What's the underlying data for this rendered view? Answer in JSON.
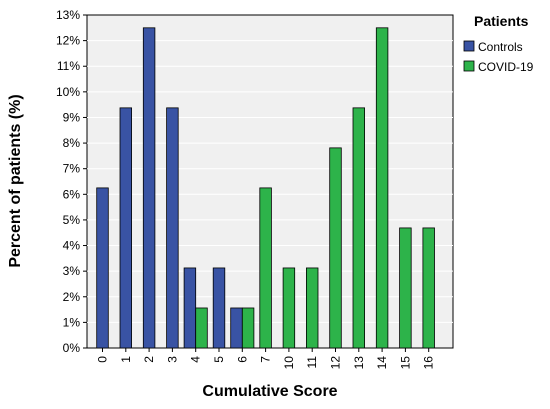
{
  "chart_data": {
    "type": "bar",
    "title": "",
    "xlabel": "Cumulative Score",
    "ylabel": "Percent of patients (%)",
    "ylim": [
      0,
      13
    ],
    "y_ticks": [
      "0%",
      "1%",
      "2%",
      "3%",
      "4%",
      "5%",
      "6%",
      "7%",
      "8%",
      "9%",
      "10%",
      "11%",
      "12%",
      "13%"
    ],
    "categories": [
      "0",
      "1",
      "2",
      "3",
      "4",
      "5",
      "6",
      "7",
      "10",
      "11",
      "12",
      "13",
      "14",
      "15",
      "16"
    ],
    "series": [
      {
        "name": "Controls",
        "color": "#3953a4",
        "values": [
          6.25,
          9.375,
          12.5,
          9.375,
          3.125,
          3.125,
          1.5625,
          null,
          null,
          null,
          null,
          null,
          null,
          null,
          null
        ]
      },
      {
        "name": "COVID-19",
        "color": "#2db34a",
        "values": [
          null,
          null,
          null,
          null,
          1.5625,
          null,
          1.5625,
          6.25,
          3.125,
          3.125,
          7.8125,
          9.375,
          12.5,
          4.6875,
          4.6875
        ]
      }
    ],
    "legend": {
      "title": "Patients",
      "position": "right"
    },
    "grid": true
  }
}
